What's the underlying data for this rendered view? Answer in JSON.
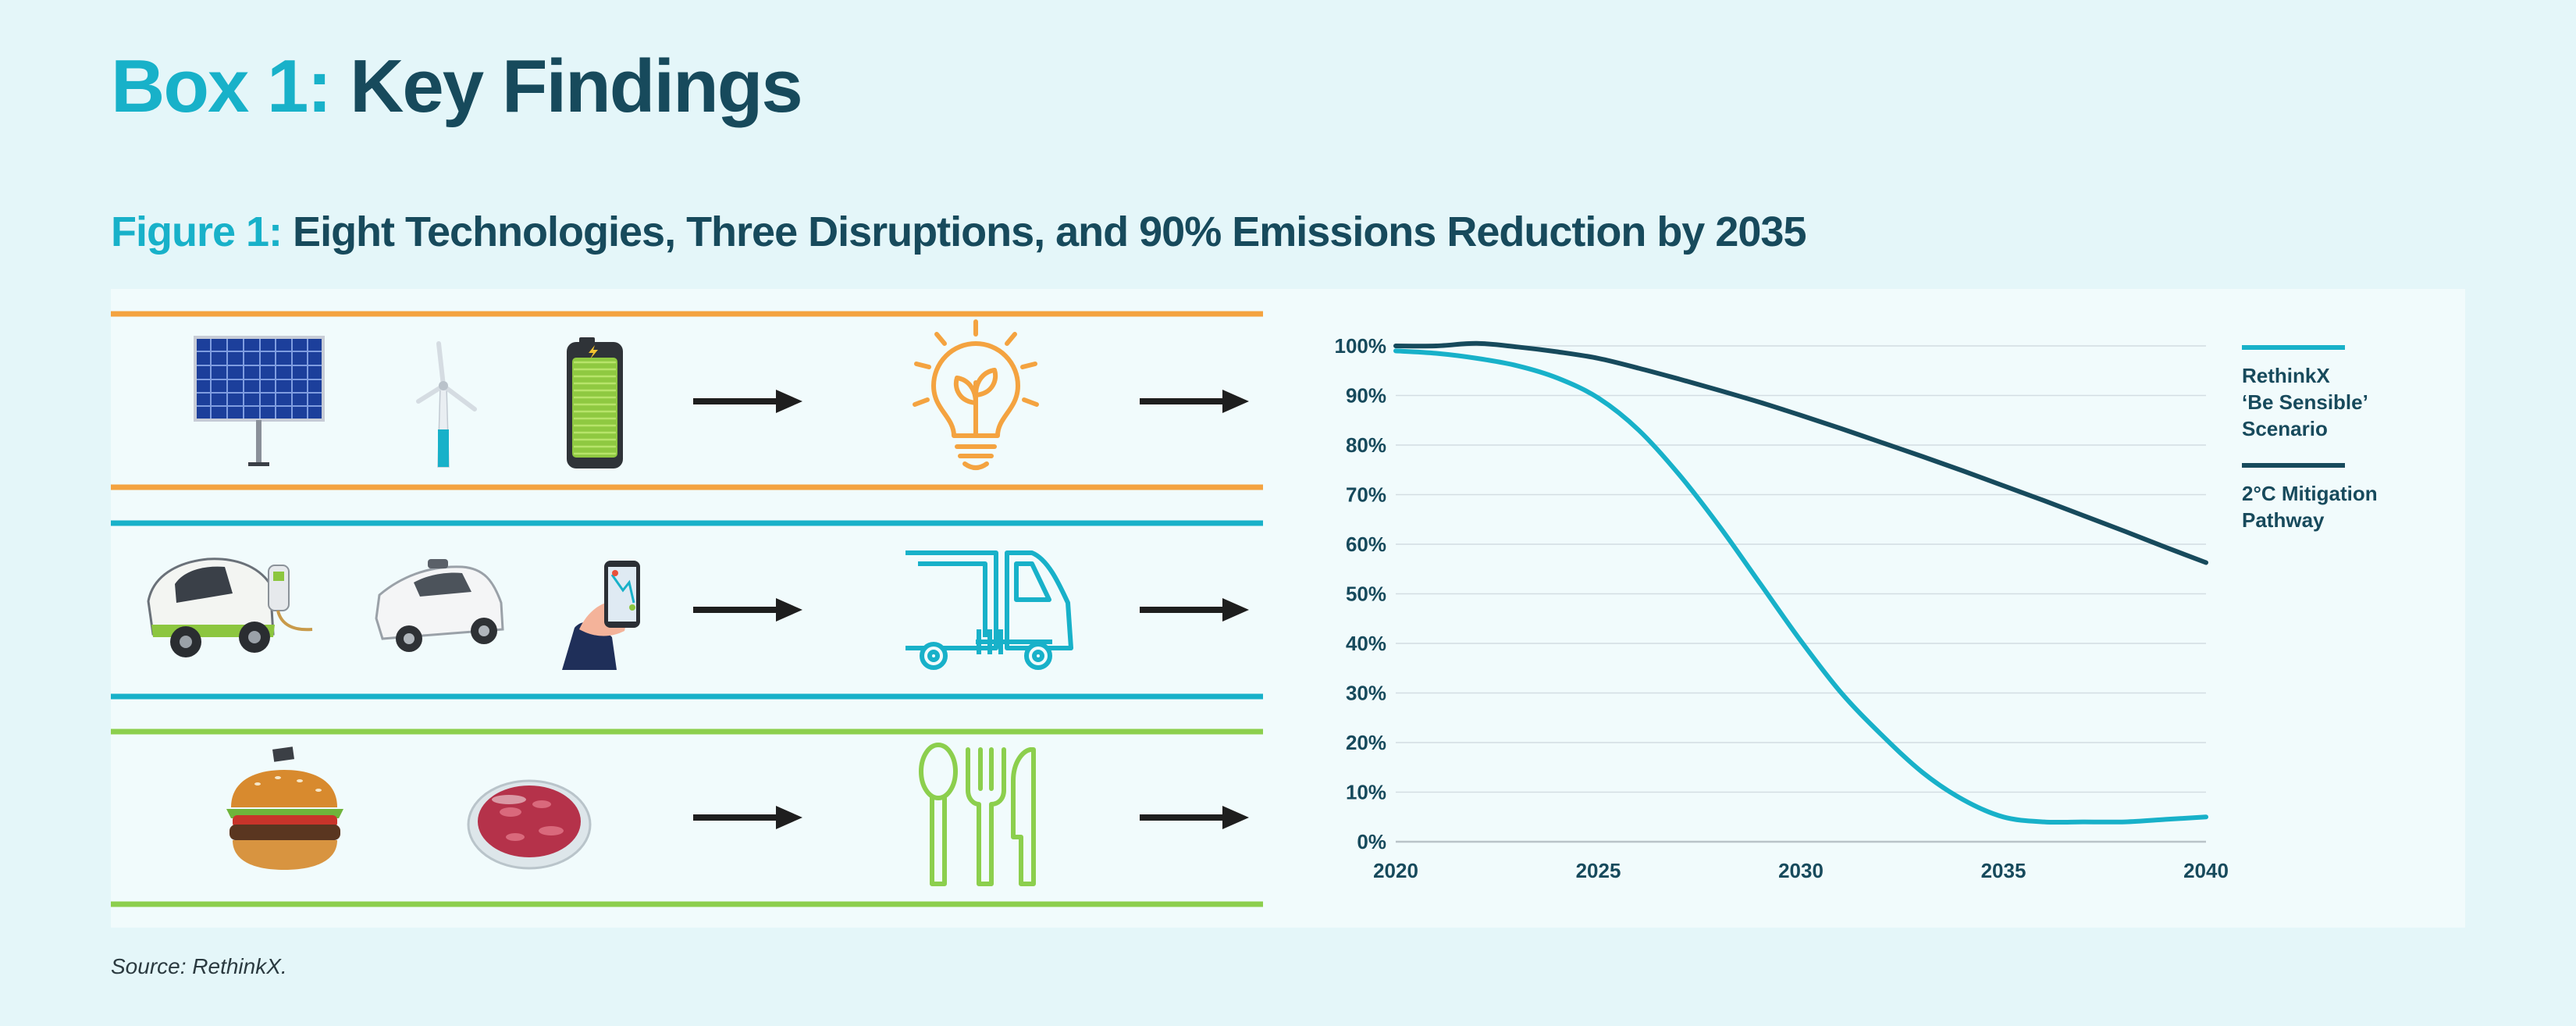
{
  "header": {
    "box_label": "Box 1:",
    "box_title": "Key Findings",
    "figure_label": "Figure 1:",
    "figure_title": "Eight Technologies, Three Disruptions, and 90% Emissions Reduction by 2035"
  },
  "rows": [
    {
      "color": "#f4a340",
      "technologies": [
        "solar-panel-icon",
        "wind-turbine-icon",
        "battery-icon"
      ],
      "disruption": "lightbulb-plant-icon"
    },
    {
      "color": "#18b1c9",
      "technologies": [
        "electric-vehicle-icon",
        "autonomous-car-icon",
        "ride-hailing-phone-icon"
      ],
      "disruption": "truck-icon"
    },
    {
      "color": "#8ccf4d",
      "technologies": [
        "plant-burger-icon",
        "cultured-meat-icon"
      ],
      "disruption": "cutlery-icon"
    }
  ],
  "chart_data": {
    "type": "line",
    "x": [
      2020,
      2021,
      2022,
      2023,
      2024,
      2025,
      2026,
      2027,
      2028,
      2029,
      2030,
      2031,
      2032,
      2033,
      2034,
      2035,
      2036,
      2037,
      2038,
      2039,
      2040
    ],
    "xticks": [
      "2020",
      "2025",
      "2030",
      "2035",
      "2040"
    ],
    "yticks": [
      "0%",
      "10%",
      "20%",
      "30%",
      "40%",
      "50%",
      "60%",
      "70%",
      "80%",
      "90%",
      "100%"
    ],
    "xlim": [
      2020,
      2040
    ],
    "ylim": [
      0,
      100
    ],
    "grid": true,
    "legend_position": "right",
    "series": [
      {
        "name": "RethinkX ‘Be Sensible’ Scenario",
        "color": "#18b1c9",
        "values": [
          99,
          98.5,
          97.5,
          96,
          93.5,
          89.5,
          83,
          74,
          63.5,
          52,
          40.5,
          30,
          21.5,
          14,
          8.5,
          5,
          4,
          4,
          4,
          4.5,
          5
        ]
      },
      {
        "name": "2°C Mitigation Pathway",
        "color": "#174a5c",
        "values": [
          100,
          100,
          100.5,
          99.8,
          98.8,
          97.5,
          95.5,
          93.3,
          91,
          88.6,
          86,
          83.3,
          80.5,
          77.7,
          74.8,
          71.8,
          68.8,
          65.7,
          62.6,
          59.4,
          56.3
        ]
      }
    ],
    "title": "",
    "xlabel": "",
    "ylabel": ""
  },
  "legend": [
    {
      "lines": [
        "RethinkX",
        "‘Be Sensible’",
        "Scenario"
      ],
      "color": "#18b1c9"
    },
    {
      "lines": [
        "2°C Mitigation",
        "Pathway"
      ],
      "color": "#174a5c"
    }
  ],
  "source": "Source: RethinkX."
}
